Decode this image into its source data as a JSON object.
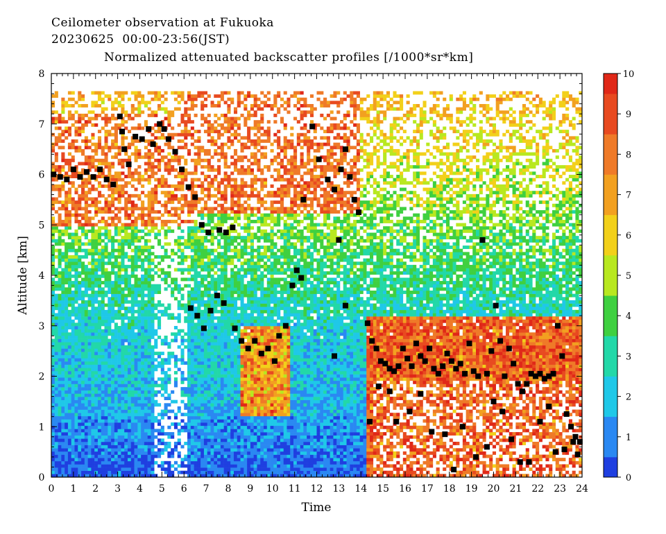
{
  "header": {
    "line1": "Ceilometer observation at Fukuoka",
    "line2": "20230625  00:00-23:56(JST)",
    "subtitle": "Normalized attenuated backscatter profiles [/1000*sr*km]"
  },
  "chart_data": {
    "type": "heatmap",
    "title": "Normalized attenuated backscatter profiles [/1000*sr*km]",
    "xlabel": "Time",
    "ylabel": "Altitude [km]",
    "xlim": [
      0,
      24
    ],
    "ylim": [
      0,
      8
    ],
    "data_top_km": 7.65,
    "x_ticks": [
      "0",
      "1",
      "2",
      "3",
      "4",
      "5",
      "6",
      "7",
      "8",
      "9",
      "10",
      "11",
      "12",
      "13",
      "14",
      "15",
      "16",
      "17",
      "18",
      "19",
      "20",
      "21",
      "22",
      "23",
      "24"
    ],
    "y_ticks": [
      "0",
      "1",
      "2",
      "3",
      "4",
      "5",
      "6",
      "7",
      "8"
    ],
    "colorbar": {
      "min": 0,
      "max": 10,
      "ticks": [
        "0",
        "1",
        "2",
        "3",
        "4",
        "5",
        "6",
        "7",
        "8",
        "9",
        "10"
      ],
      "colors": [
        "#1f3fe0",
        "#2a88f2",
        "#1fc8e8",
        "#22d8a8",
        "#3fd040",
        "#b8e820",
        "#f2d01a",
        "#f2a020",
        "#ef7a28",
        "#e84a20",
        "#e02818"
      ]
    },
    "overlay_markers": {
      "marker": "black-square",
      "points": [
        [
          0.1,
          6.0
        ],
        [
          0.4,
          5.95
        ],
        [
          0.7,
          5.9
        ],
        [
          1.0,
          6.1
        ],
        [
          1.3,
          5.95
        ],
        [
          1.6,
          6.05
        ],
        [
          1.9,
          5.95
        ],
        [
          2.2,
          6.1
        ],
        [
          2.5,
          5.9
        ],
        [
          2.8,
          5.8
        ],
        [
          3.1,
          7.15
        ],
        [
          3.2,
          6.85
        ],
        [
          3.3,
          6.5
        ],
        [
          3.5,
          6.2
        ],
        [
          3.8,
          6.75
        ],
        [
          4.1,
          6.7
        ],
        [
          4.4,
          6.9
        ],
        [
          4.6,
          6.6
        ],
        [
          4.9,
          7.0
        ],
        [
          5.1,
          6.9
        ],
        [
          5.3,
          6.7
        ],
        [
          5.6,
          6.45
        ],
        [
          5.9,
          6.1
        ],
        [
          6.2,
          5.75
        ],
        [
          6.5,
          5.55
        ],
        [
          6.8,
          5.0
        ],
        [
          7.1,
          4.85
        ],
        [
          7.6,
          4.9
        ],
        [
          7.9,
          4.85
        ],
        [
          8.2,
          4.95
        ],
        [
          6.3,
          3.35
        ],
        [
          6.6,
          3.2
        ],
        [
          6.9,
          2.95
        ],
        [
          7.2,
          3.3
        ],
        [
          7.5,
          3.6
        ],
        [
          7.8,
          3.45
        ],
        [
          8.3,
          2.95
        ],
        [
          8.6,
          2.7
        ],
        [
          8.9,
          2.55
        ],
        [
          9.2,
          2.7
        ],
        [
          9.5,
          2.45
        ],
        [
          9.8,
          2.55
        ],
        [
          10.1,
          2.3
        ],
        [
          10.3,
          2.8
        ],
        [
          10.6,
          3.0
        ],
        [
          10.9,
          3.8
        ],
        [
          11.1,
          4.1
        ],
        [
          11.3,
          3.95
        ],
        [
          11.4,
          5.5
        ],
        [
          11.8,
          6.95
        ],
        [
          12.1,
          6.3
        ],
        [
          12.5,
          5.9
        ],
        [
          12.8,
          5.7
        ],
        [
          13.1,
          6.1
        ],
        [
          13.3,
          6.5
        ],
        [
          13.5,
          5.95
        ],
        [
          13.7,
          5.5
        ],
        [
          13.9,
          5.25
        ],
        [
          13.0,
          4.7
        ],
        [
          13.3,
          3.4
        ],
        [
          12.8,
          2.4
        ],
        [
          14.3,
          3.05
        ],
        [
          14.5,
          2.7
        ],
        [
          14.7,
          2.55
        ],
        [
          14.9,
          2.3
        ],
        [
          15.1,
          2.25
        ],
        [
          15.3,
          2.15
        ],
        [
          15.5,
          2.1
        ],
        [
          15.7,
          2.2
        ],
        [
          15.9,
          2.55
        ],
        [
          16.1,
          2.35
        ],
        [
          16.3,
          2.2
        ],
        [
          16.5,
          2.65
        ],
        [
          16.7,
          2.4
        ],
        [
          16.9,
          2.3
        ],
        [
          17.1,
          2.55
        ],
        [
          17.3,
          2.15
        ],
        [
          17.5,
          2.05
        ],
        [
          17.7,
          2.2
        ],
        [
          17.9,
          2.45
        ],
        [
          18.1,
          2.3
        ],
        [
          18.3,
          2.15
        ],
        [
          18.5,
          2.25
        ],
        [
          18.7,
          2.05
        ],
        [
          18.9,
          2.65
        ],
        [
          19.1,
          2.1
        ],
        [
          19.3,
          2.0
        ],
        [
          19.5,
          4.7
        ],
        [
          19.7,
          2.05
        ],
        [
          19.9,
          2.5
        ],
        [
          20.1,
          3.4
        ],
        [
          20.3,
          2.7
        ],
        [
          20.5,
          2.0
        ],
        [
          20.7,
          2.55
        ],
        [
          20.9,
          2.25
        ],
        [
          21.1,
          1.85
        ],
        [
          21.3,
          1.7
        ],
        [
          21.5,
          1.85
        ],
        [
          21.7,
          2.05
        ],
        [
          21.9,
          2.0
        ],
        [
          22.1,
          2.05
        ],
        [
          22.3,
          1.95
        ],
        [
          22.5,
          2.0
        ],
        [
          22.7,
          2.05
        ],
        [
          22.9,
          3.0
        ],
        [
          23.1,
          2.4
        ],
        [
          23.3,
          1.25
        ],
        [
          23.5,
          1.0
        ],
        [
          23.7,
          0.8
        ],
        [
          23.9,
          0.7
        ],
        [
          14.4,
          1.1
        ],
        [
          14.8,
          1.8
        ],
        [
          15.3,
          1.7
        ],
        [
          15.6,
          1.1
        ],
        [
          16.2,
          1.3
        ],
        [
          16.7,
          1.65
        ],
        [
          17.2,
          0.9
        ],
        [
          17.8,
          0.85
        ],
        [
          18.2,
          0.15
        ],
        [
          18.6,
          1.0
        ],
        [
          19.2,
          0.4
        ],
        [
          19.7,
          0.6
        ],
        [
          20.0,
          1.5
        ],
        [
          20.4,
          1.3
        ],
        [
          20.8,
          0.75
        ],
        [
          21.2,
          0.3
        ],
        [
          21.6,
          0.3
        ],
        [
          22.1,
          1.1
        ],
        [
          22.5,
          1.4
        ],
        [
          22.8,
          0.5
        ],
        [
          23.2,
          0.55
        ],
        [
          23.6,
          0.7
        ],
        [
          23.8,
          0.45
        ]
      ]
    }
  }
}
